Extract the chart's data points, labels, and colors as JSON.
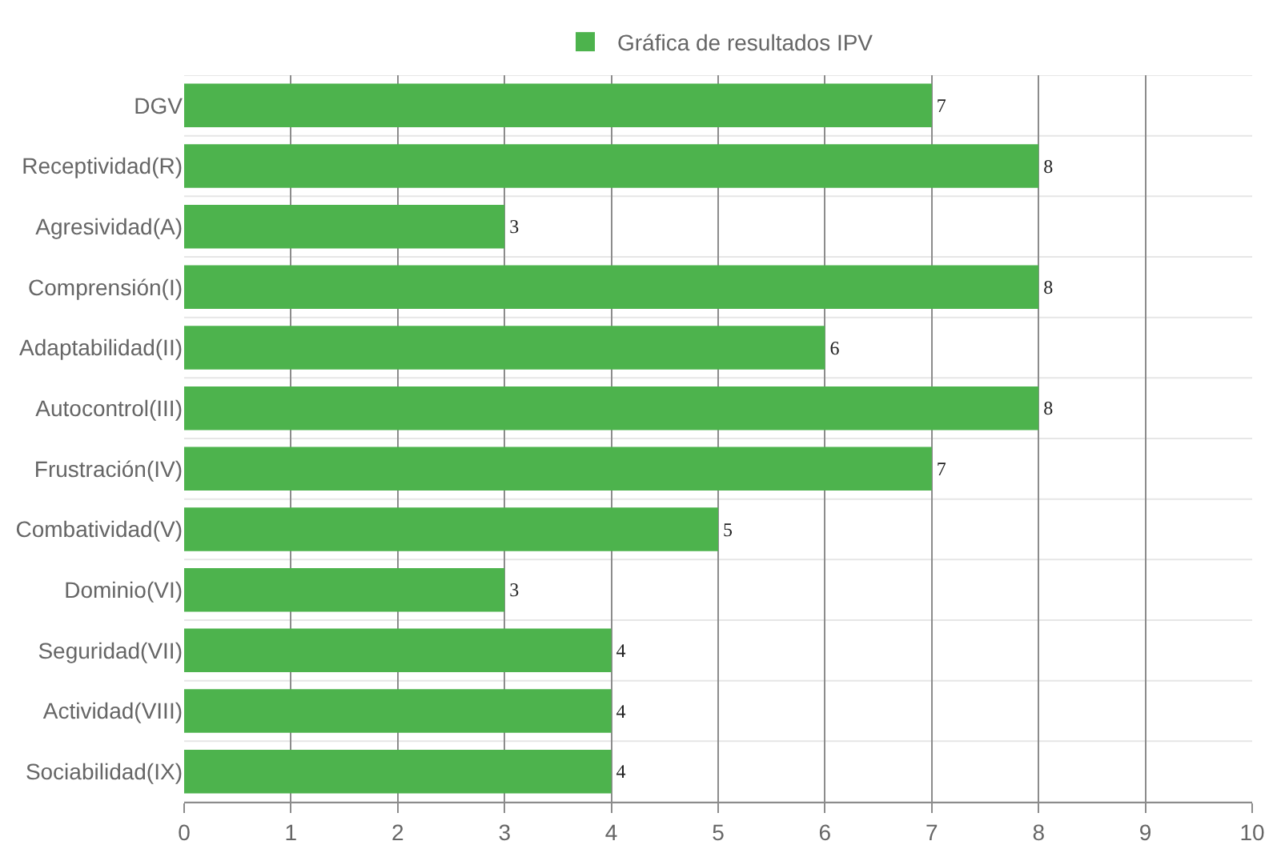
{
  "chart_data": {
    "type": "bar",
    "orientation": "horizontal",
    "categories": [
      "DGV",
      "Receptividad(R)",
      "Agresividad(A)",
      "Comprensión(I)",
      "Adaptabilidad(II)",
      "Autocontrol(III)",
      "Frustración(IV)",
      "Combatividad(V)",
      "Dominio(VI)",
      "Seguridad(VII)",
      "Actividad(VIII)",
      "Sociabilidad(IX)"
    ],
    "series": [
      {
        "name": "Gráfica de resultados IPV",
        "color": "#4db34d",
        "values": [
          7,
          8,
          3,
          8,
          6,
          8,
          7,
          5,
          3,
          4,
          4,
          4
        ]
      }
    ],
    "xlim": [
      0,
      10
    ],
    "xticks": [
      0,
      1,
      2,
      3,
      4,
      5,
      6,
      7,
      8,
      9,
      10
    ],
    "grid": true,
    "legend": "top",
    "data_labels": true
  }
}
